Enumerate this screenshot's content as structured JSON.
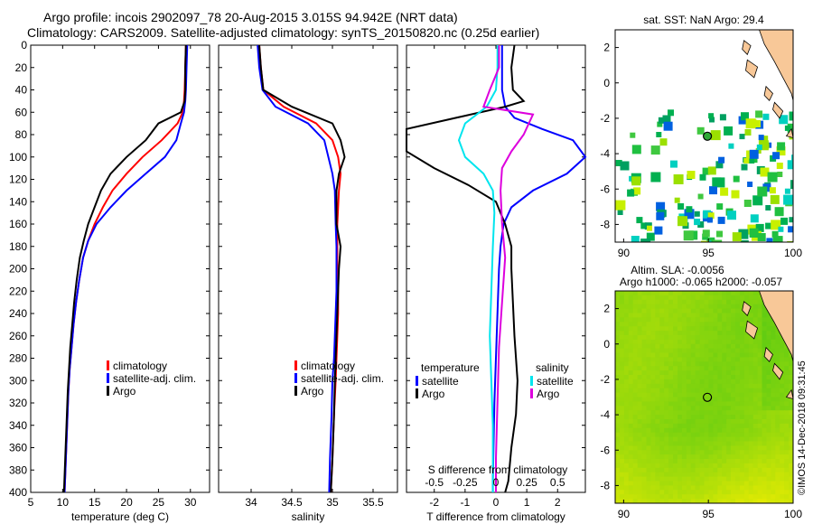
{
  "titles": {
    "line1": "Argo profile: incois 2902097_78 20-Aug-2015 3.015S 94.942E (NRT data)",
    "line2": "Climatology: CARS2009. Satellite-adjusted climatology: synTS_20150820.nc (0.25d earlier)",
    "sst_map_title": "sat. SST: NaN Argo: 29.4",
    "sla_title_1": "Altim. SLA: -0.0056",
    "sla_title_2": "Argo h1000: -0.065 h2000: -0.057",
    "side_credit": "©IMOS 14-Dec-2018 09:31:45"
  },
  "colors": {
    "climatology": "#ff0000",
    "satellite": "#0000ff",
    "argo": "#000000",
    "sat_salinity": "#00e5ee",
    "argo_salinity": "#dd00dd",
    "land": "#f8c898"
  },
  "depth_axis": {
    "range": [
      0,
      400
    ],
    "ticks": [
      0,
      20,
      40,
      60,
      80,
      100,
      120,
      140,
      160,
      180,
      200,
      220,
      240,
      260,
      280,
      300,
      320,
      340,
      360,
      380,
      400
    ]
  },
  "chart_data": [
    {
      "type": "line",
      "id": "temperature",
      "xlabel": "temperature (deg C)",
      "ylabel": "depth",
      "xlim": [
        5,
        33
      ],
      "ylim": [
        400,
        0
      ],
      "xticks": [
        5,
        10,
        15,
        20,
        25,
        30
      ],
      "legend": [
        "climatology",
        "satellite-adj. clim.",
        "Argo"
      ],
      "series": [
        {
          "name": "climatology",
          "color_key": "climatology",
          "x": [
            29.3,
            29.2,
            29.1,
            29.0,
            28.8,
            28.0,
            25.5,
            22.5,
            20.0,
            17.8,
            16.3,
            15.0,
            14.0,
            13.2,
            12.6,
            12.1,
            11.7,
            11.4,
            11.1,
            10.9,
            10.7,
            10.5,
            10.3
          ],
          "y": [
            0,
            20,
            40,
            50,
            60,
            70,
            85,
            100,
            115,
            130,
            145,
            160,
            175,
            190,
            210,
            230,
            250,
            270,
            290,
            310,
            340,
            370,
            400
          ]
        },
        {
          "name": "satellite-adj. clim.",
          "color_key": "satellite",
          "x": [
            29.5,
            29.4,
            29.3,
            29.2,
            29.0,
            28.5,
            27.8,
            26.0,
            23.0,
            20.0,
            17.5,
            15.3,
            14.0,
            13.2,
            12.6,
            12.1,
            11.7,
            11.4,
            11.1,
            10.9,
            10.7,
            10.5,
            10.3
          ],
          "y": [
            0,
            20,
            40,
            50,
            60,
            70,
            85,
            100,
            115,
            130,
            145,
            160,
            175,
            190,
            210,
            230,
            250,
            270,
            290,
            310,
            340,
            370,
            400
          ]
        },
        {
          "name": "Argo",
          "color_key": "argo",
          "x": [
            29.3,
            29.2,
            29.2,
            29.1,
            28.5,
            25.0,
            23.0,
            20.0,
            17.5,
            16.0,
            15.0,
            14.0,
            13.3,
            12.7,
            12.2,
            11.8,
            11.5,
            11.2,
            11.0,
            10.8,
            10.6,
            10.4,
            10.2
          ],
          "y": [
            0,
            20,
            40,
            50,
            60,
            70,
            85,
            100,
            115,
            130,
            145,
            160,
            175,
            190,
            210,
            230,
            250,
            270,
            290,
            310,
            340,
            370,
            400
          ]
        }
      ]
    },
    {
      "type": "line",
      "id": "salinity",
      "xlabel": "salinity",
      "ylabel": "depth",
      "xlim": [
        33.6,
        35.8
      ],
      "ylim": [
        400,
        0
      ],
      "xticks": [
        34,
        34.5,
        35,
        35.5
      ],
      "xticklabels": [
        "34",
        "34.5",
        "35",
        "35.5"
      ],
      "legend": [
        "climatology",
        "satellite-adj. clim.",
        "Argo"
      ],
      "series": [
        {
          "name": "climatology",
          "color_key": "climatology",
          "x": [
            34.1,
            34.12,
            34.15,
            34.4,
            34.8,
            35.0,
            35.07,
            35.1,
            35.08,
            35.06,
            35.06,
            35.06,
            35.07,
            35.07,
            35.06,
            35.05,
            35.04,
            35.02,
            35.0,
            34.98
          ],
          "y": [
            0,
            20,
            40,
            55,
            70,
            85,
            100,
            115,
            130,
            160,
            180,
            200,
            220,
            240,
            260,
            280,
            300,
            330,
            370,
            400
          ]
        },
        {
          "name": "satellite-adj. clim.",
          "color_key": "satellite",
          "x": [
            34.08,
            34.1,
            34.14,
            34.3,
            34.7,
            34.9,
            34.95,
            35.0,
            35.03,
            35.04,
            35.05,
            35.05,
            35.05,
            35.04,
            35.03,
            35.02,
            35.0,
            34.99,
            34.97,
            34.96
          ],
          "y": [
            0,
            20,
            40,
            55,
            70,
            85,
            100,
            115,
            130,
            160,
            180,
            200,
            220,
            240,
            260,
            280,
            300,
            330,
            370,
            400
          ]
        },
        {
          "name": "Argo",
          "color_key": "argo",
          "x": [
            34.1,
            34.12,
            34.15,
            34.5,
            35.0,
            35.1,
            35.15,
            35.08,
            35.05,
            35.05,
            35.1,
            35.08,
            35.07,
            35.06,
            35.05,
            35.04,
            35.03,
            35.02,
            35.0,
            34.98
          ],
          "y": [
            0,
            20,
            40,
            55,
            70,
            85,
            100,
            115,
            130,
            160,
            180,
            200,
            220,
            240,
            260,
            280,
            300,
            330,
            370,
            400
          ]
        }
      ]
    },
    {
      "type": "line",
      "id": "difference",
      "xlabel": "T difference from climatology",
      "top_xlabel": "S difference from climatology",
      "ylabel": "depth",
      "xlim": [
        -2.9,
        2.9
      ],
      "ylim": [
        400,
        0
      ],
      "xticks": [
        -2,
        -1,
        0,
        1,
        2
      ],
      "top_xticklabels": [
        "-0.5",
        "-0.25",
        "0",
        "0.25",
        "0.5"
      ],
      "top_xticks_at": [
        -2,
        -1,
        0,
        1,
        2
      ],
      "legend_temperature_heading": "temperature",
      "legend_salinity_heading": "salinity",
      "legend": [
        "satellite",
        "Argo",
        "satellite",
        "Argo"
      ],
      "series": [
        {
          "name": "temperature satellite",
          "color_key": "satellite",
          "x": [
            0.2,
            0.2,
            0.2,
            0.3,
            0.6,
            1.5,
            2.5,
            2.9,
            2.3,
            1.2,
            0.5,
            0.25,
            0.15,
            0.1,
            0.05,
            0.0,
            -0.05,
            -0.08,
            -0.1,
            -0.1
          ],
          "y": [
            0,
            20,
            40,
            55,
            65,
            75,
            85,
            100,
            115,
            130,
            145,
            160,
            180,
            200,
            240,
            280,
            320,
            360,
            390,
            400
          ]
        },
        {
          "name": "temperature Argo",
          "color_key": "argo",
          "x": [
            0.6,
            0.5,
            0.55,
            0.9,
            0.3,
            -2.9,
            -2.9,
            -2.0,
            -0.9,
            0.0,
            0.3,
            0.5,
            0.5,
            0.55,
            0.6,
            0.7,
            0.65,
            0.5,
            0.4,
            0.3
          ],
          "y": [
            0,
            20,
            40,
            50,
            55,
            75,
            95,
            110,
            125,
            140,
            160,
            180,
            200,
            230,
            260,
            300,
            330,
            360,
            390,
            400
          ]
        },
        {
          "name": "salinity satellite",
          "color_key": "sat_salinity",
          "x": [
            0.05,
            0.05,
            0.0,
            -0.3,
            -1.0,
            -1.2,
            -1.0,
            -0.4,
            -0.1,
            -0.05,
            -0.1,
            -0.15,
            -0.2,
            -0.15,
            -0.1,
            -0.1,
            -0.1
          ],
          "y": [
            0,
            20,
            40,
            55,
            70,
            85,
            100,
            115,
            130,
            150,
            180,
            220,
            260,
            300,
            340,
            380,
            400
          ]
        },
        {
          "name": "salinity Argo",
          "color_key": "argo_salinity",
          "x": [
            0.1,
            0.1,
            -0.2,
            -0.4,
            1.2,
            0.9,
            0.5,
            0.2,
            0.15,
            0.2,
            0.3,
            0.2,
            0.1,
            0.05,
            0.0,
            0.0
          ],
          "y": [
            0,
            20,
            40,
            55,
            62,
            80,
            95,
            110,
            130,
            160,
            190,
            230,
            270,
            320,
            370,
            400
          ]
        }
      ]
    },
    {
      "type": "heatmap",
      "id": "sst_map",
      "title": "sat. SST: NaN Argo: 29.4",
      "xlim": [
        89.5,
        100
      ],
      "ylim": [
        -9,
        3
      ],
      "xticks": [
        90,
        95,
        100
      ],
      "yticks": [
        2,
        0,
        -2,
        -4,
        -6,
        -8
      ],
      "argo_position": {
        "lon": 94.942,
        "lat": -3.015
      }
    },
    {
      "type": "heatmap",
      "id": "sla_map",
      "title": "Altim. SLA: -0.0056",
      "subtitle": "Argo h1000: -0.065 h2000: -0.057",
      "xlim": [
        89.5,
        100
      ],
      "ylim": [
        -9,
        3
      ],
      "xticks": [
        90,
        95,
        100
      ],
      "yticks": [
        2,
        0,
        -2,
        -4,
        -6,
        -8
      ],
      "argo_position": {
        "lon": 94.942,
        "lat": -3.015
      }
    }
  ]
}
